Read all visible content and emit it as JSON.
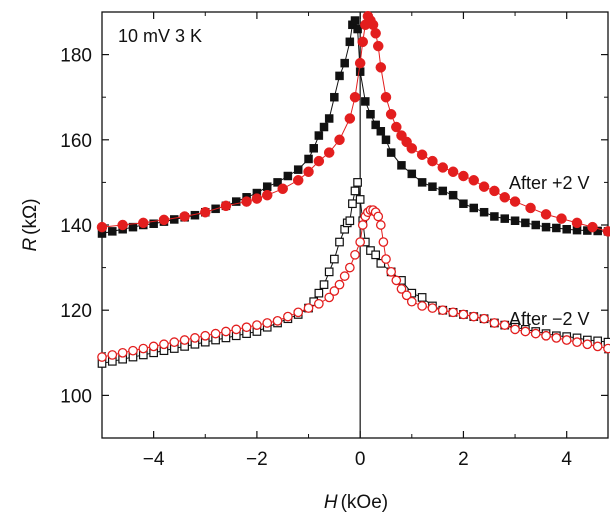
{
  "chart_data": {
    "type": "scatter",
    "title": "",
    "xlabel_italic": "H",
    "xlabel_unit": "(kOe)",
    "ylabel_italic": "R",
    "ylabel_unit": "(kΩ)",
    "xlim": [
      -5,
      4.8
    ],
    "ylim": [
      90,
      190
    ],
    "x_ticks": [
      -4,
      -2,
      0,
      2,
      4
    ],
    "x_tick_labels": [
      "−4",
      "−2",
      "0",
      "2",
      "4"
    ],
    "y_ticks": [
      100,
      120,
      140,
      160,
      180
    ],
    "y_tick_labels": [
      "100",
      "120",
      "140",
      "160",
      "180"
    ],
    "annotations": {
      "condition": "10 mV 3 K",
      "upper_label": "After +2 V",
      "lower_label": "After −2 V"
    },
    "series": [
      {
        "color": "#111111",
        "marker": "filled-square",
        "x": [
          -5,
          -4.8,
          -4.6,
          -4.4,
          -4.2,
          -4.0,
          -3.8,
          -3.6,
          -3.4,
          -3.2,
          -3.0,
          -2.8,
          -2.6,
          -2.4,
          -2.2,
          -2.0,
          -1.8,
          -1.6,
          -1.4,
          -1.2,
          -1.0,
          -0.9,
          -0.8,
          -0.7,
          -0.6,
          -0.5,
          -0.4,
          -0.3,
          -0.2,
          -0.15,
          -0.1,
          -0.05,
          0.0,
          0.1,
          0.2,
          0.3,
          0.4,
          0.5,
          0.6,
          0.8,
          1.0,
          1.2,
          1.4,
          1.6,
          1.8,
          2.0,
          2.2,
          2.4,
          2.6,
          2.8,
          3.0,
          3.2,
          3.4,
          3.6,
          3.8,
          4.0,
          4.2,
          4.4,
          4.6,
          4.8
        ],
        "y": [
          138,
          138.5,
          139,
          139.5,
          140,
          140.3,
          140.8,
          141.3,
          141.8,
          142.3,
          143,
          143.8,
          144.5,
          145.5,
          146.5,
          147.5,
          149,
          150,
          151.5,
          153,
          155.5,
          158,
          161,
          163,
          165,
          170,
          175,
          178,
          183,
          187,
          188,
          186,
          176,
          169,
          166,
          163.5,
          162,
          160,
          157,
          154,
          152,
          150,
          149,
          148,
          147,
          145,
          144,
          143,
          142,
          141.5,
          141,
          140.5,
          140,
          139.5,
          139.3,
          139,
          138.8,
          138.7,
          138.6,
          138.5
        ]
      },
      {
        "color": "#e31e1e",
        "marker": "filled-circle",
        "x": [
          -5,
          -4.6,
          -4.2,
          -3.8,
          -3.4,
          -3.0,
          -2.6,
          -2.2,
          -2.0,
          -1.8,
          -1.5,
          -1.2,
          -1.0,
          -0.8,
          -0.6,
          -0.4,
          -0.2,
          -0.1,
          0.0,
          0.05,
          0.1,
          0.15,
          0.2,
          0.25,
          0.3,
          0.35,
          0.4,
          0.5,
          0.6,
          0.7,
          0.8,
          0.9,
          1.0,
          1.2,
          1.4,
          1.6,
          1.8,
          2.0,
          2.2,
          2.4,
          2.6,
          2.8,
          3.0,
          3.3,
          3.6,
          3.9,
          4.2,
          4.5,
          4.8
        ],
        "y": [
          139.5,
          140,
          140.5,
          141.2,
          142,
          143,
          144.5,
          145.5,
          146.2,
          147,
          148.5,
          150.5,
          152.5,
          155,
          157,
          160,
          165,
          170,
          178,
          183,
          187,
          189,
          188,
          187,
          185,
          182,
          177,
          170,
          166,
          163,
          161,
          159.5,
          158,
          156.5,
          155,
          153.5,
          152.5,
          151.5,
          150.5,
          149,
          148,
          146.5,
          145.5,
          144,
          142.5,
          141.5,
          140.5,
          139.5,
          138.5
        ]
      },
      {
        "color": "#111111",
        "marker": "open-square",
        "x": [
          -5,
          -4.8,
          -4.6,
          -4.4,
          -4.2,
          -4.0,
          -3.8,
          -3.6,
          -3.4,
          -3.2,
          -3.0,
          -2.8,
          -2.6,
          -2.4,
          -2.2,
          -2.0,
          -1.8,
          -1.6,
          -1.4,
          -1.2,
          -1.0,
          -0.9,
          -0.8,
          -0.7,
          -0.6,
          -0.5,
          -0.4,
          -0.3,
          -0.25,
          -0.2,
          -0.15,
          -0.1,
          -0.05,
          0.0,
          0.05,
          0.1,
          0.2,
          0.3,
          0.4,
          0.6,
          0.8,
          1.0,
          1.2,
          1.4,
          1.6,
          1.8,
          2.0,
          2.2,
          2.4,
          2.6,
          2.8,
          3.0,
          3.2,
          3.4,
          3.6,
          3.8,
          4.0,
          4.2,
          4.4,
          4.6,
          4.8
        ],
        "y": [
          107.5,
          108,
          108.5,
          109,
          109.5,
          110,
          110.5,
          111,
          111.5,
          112,
          112.5,
          113,
          113.5,
          114,
          114.5,
          115,
          116,
          117,
          118,
          119,
          120.5,
          122,
          124,
          126,
          129,
          132,
          136,
          139,
          140.5,
          141,
          145,
          148,
          150,
          146,
          141,
          136,
          134,
          133,
          131,
          129,
          127,
          124,
          123,
          121,
          120,
          119.5,
          119,
          118.5,
          118,
          117,
          116.5,
          116,
          115.5,
          115,
          114.5,
          114,
          113.8,
          113.5,
          113,
          112.8,
          112.5
        ]
      },
      {
        "color": "#e31e1e",
        "marker": "open-circle",
        "x": [
          -5,
          -4.8,
          -4.6,
          -4.4,
          -4.2,
          -4.0,
          -3.8,
          -3.6,
          -3.4,
          -3.2,
          -3.0,
          -2.8,
          -2.6,
          -2.4,
          -2.2,
          -2.0,
          -1.8,
          -1.6,
          -1.4,
          -1.2,
          -1.0,
          -0.8,
          -0.6,
          -0.5,
          -0.4,
          -0.3,
          -0.2,
          -0.1,
          0.0,
          0.05,
          0.1,
          0.15,
          0.2,
          0.25,
          0.3,
          0.35,
          0.4,
          0.45,
          0.5,
          0.6,
          0.7,
          0.8,
          0.9,
          1.0,
          1.2,
          1.4,
          1.6,
          1.8,
          2.0,
          2.2,
          2.4,
          2.6,
          2.8,
          3.0,
          3.2,
          3.4,
          3.6,
          3.8,
          4.0,
          4.2,
          4.4,
          4.6,
          4.8
        ],
        "y": [
          109,
          109.5,
          110,
          110.5,
          111,
          111.5,
          112,
          112.5,
          113,
          113.5,
          114,
          114.5,
          115,
          115.5,
          116,
          116.5,
          117,
          117.5,
          118.5,
          119.5,
          120.5,
          121.5,
          123,
          124.5,
          126,
          128,
          130,
          133,
          136,
          140,
          142,
          143,
          143.5,
          143.5,
          143,
          142,
          140,
          136,
          132,
          129,
          127,
          125,
          123.5,
          122,
          121,
          120.5,
          120,
          119.5,
          119,
          118.5,
          118,
          117,
          116.5,
          115.5,
          115,
          114.5,
          114,
          113.5,
          113,
          112.5,
          112,
          111.5,
          111
        ]
      }
    ]
  }
}
